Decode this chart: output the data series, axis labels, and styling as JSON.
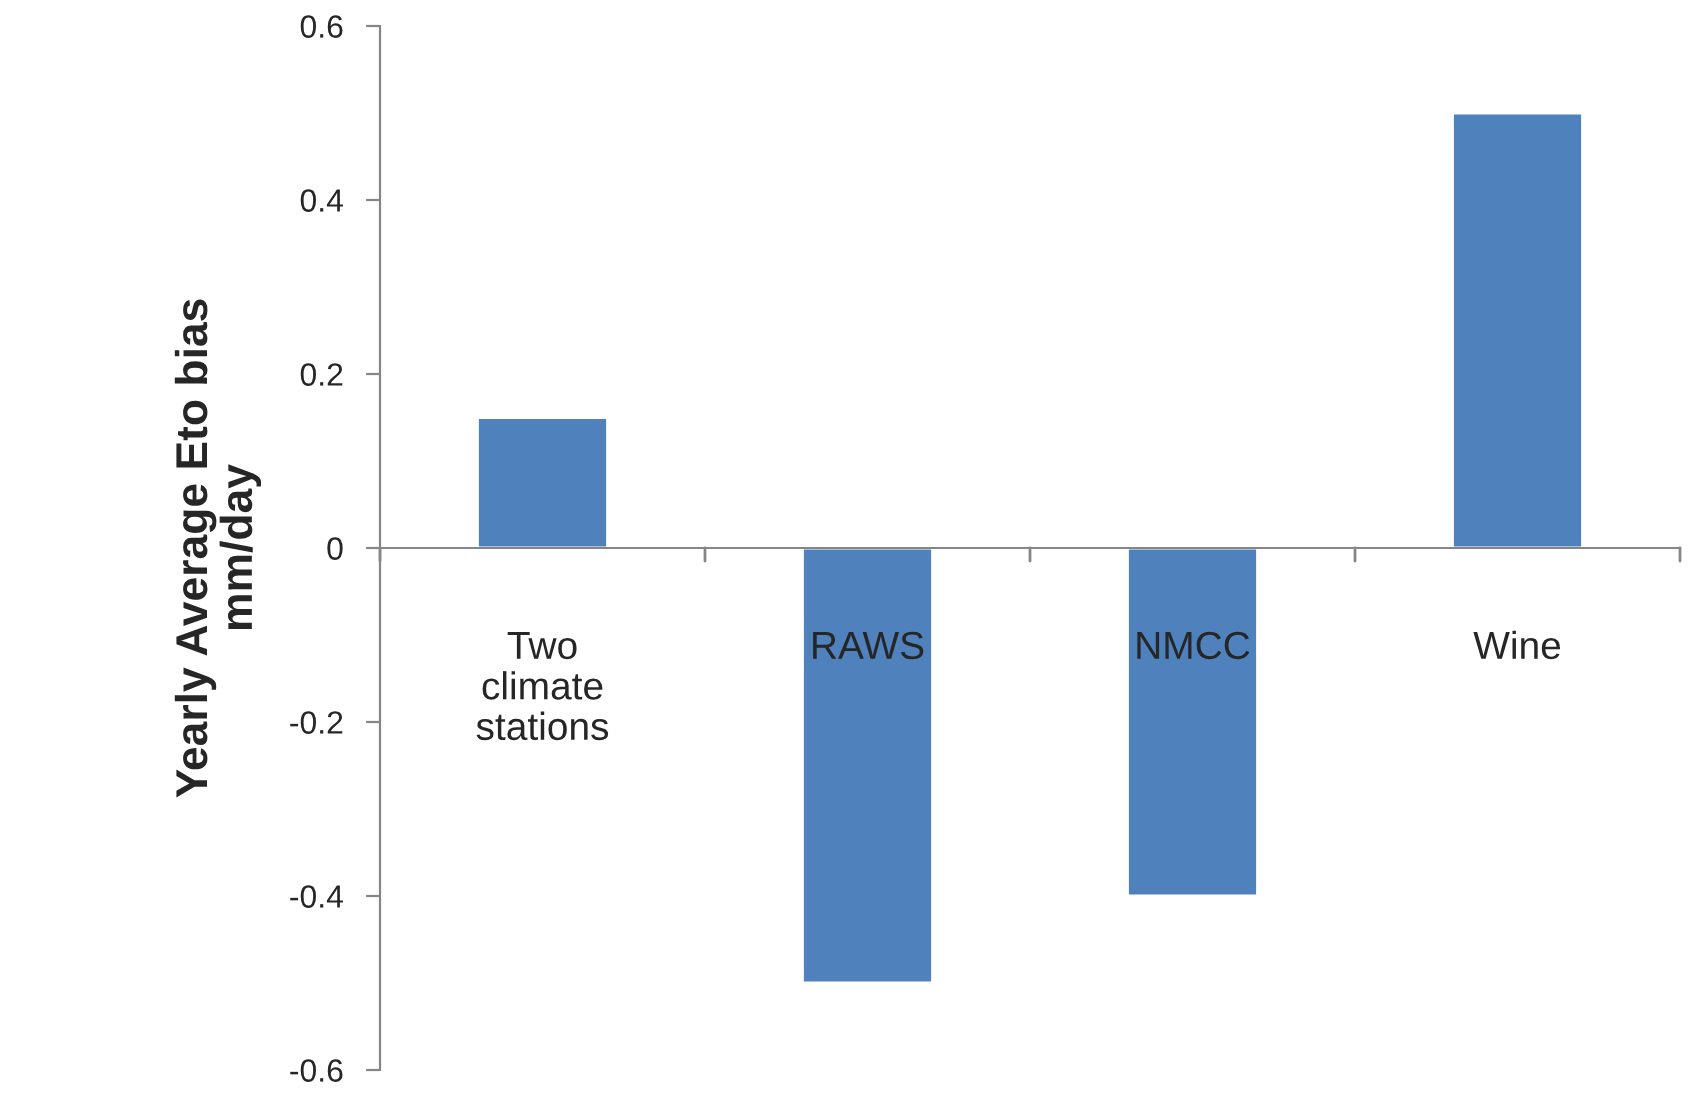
{
  "chart_data": {
    "type": "bar",
    "ylabel": "Yearly Average Eto bias mm/day",
    "categories": [
      "Two climate stations",
      "RAWS",
      "NMCC",
      "Wine"
    ],
    "values": [
      0.15,
      -0.5,
      -0.4,
      0.5
    ],
    "color": "#4f81bd",
    "ylim": [
      -0.6,
      0.6
    ],
    "yticks": [
      -0.6,
      -0.4,
      -0.2,
      0,
      0.2,
      0.4,
      0.6
    ],
    "grid": false,
    "legend": false
  }
}
